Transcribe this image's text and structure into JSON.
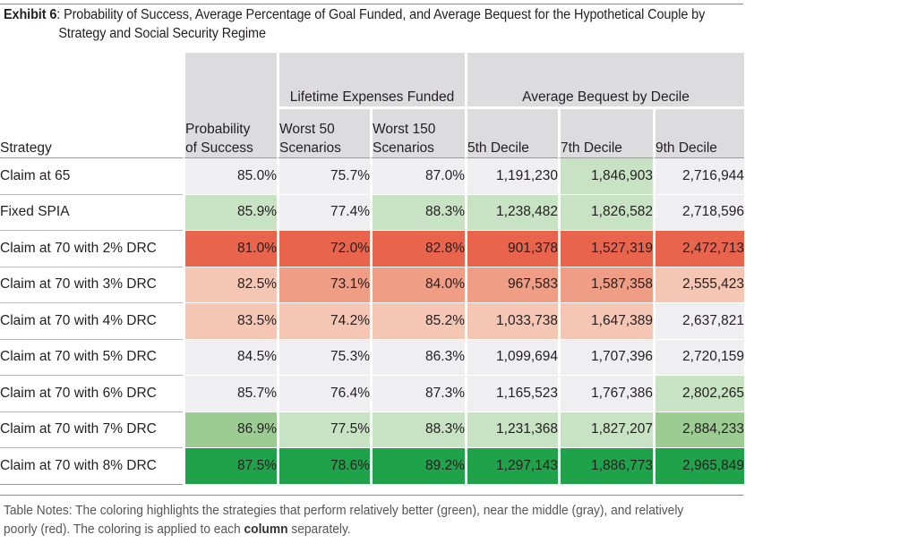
{
  "title": {
    "label": "Exhibit 6",
    "line1": ": Probability of Success, Average Percentage of Goal Funded, and Average Bequest for the Hypothetical Couple by",
    "line2": "Strategy and Social Security Regime"
  },
  "headers": {
    "strategy": "Strategy",
    "prob_line1": "Probability",
    "prob_line2": "of Success",
    "group_expenses": "Lifetime Expenses Funded",
    "group_bequest": "Average Bequest by Decile",
    "w50_line1": "Worst 50",
    "w50_line2": "Scenarios",
    "w150_line1": "Worst 150",
    "w150_line2": "Scenarios",
    "d5": "5th Decile",
    "d7": "7th Decile",
    "d9": "9th Decile"
  },
  "rows": [
    {
      "strategy": "Claim at 65",
      "prob": "85.0%",
      "w50": "75.7%",
      "w150": "87.0%",
      "d5": "1,191,230",
      "d7": "1,846,903",
      "d9": "2,716,944"
    },
    {
      "strategy": "Fixed SPIA",
      "prob": "85.9%",
      "w50": "77.4%",
      "w150": "88.3%",
      "d5": "1,238,482",
      "d7": "1,826,582",
      "d9": "2,718,596"
    },
    {
      "strategy": "Claim at 70 with 2% DRC",
      "prob": "81.0%",
      "w50": "72.0%",
      "w150": "82.8%",
      "d5": "901,378",
      "d7": "1,527,319",
      "d9": "2,472,713"
    },
    {
      "strategy": "Claim at 70 with 3% DRC",
      "prob": "82.5%",
      "w50": "73.1%",
      "w150": "84.0%",
      "d5": "967,583",
      "d7": "1,587,358",
      "d9": "2,555,423"
    },
    {
      "strategy": "Claim at 70 with 4% DRC",
      "prob": "83.5%",
      "w50": "74.2%",
      "w150": "85.2%",
      "d5": "1,033,738",
      "d7": "1,647,389",
      "d9": "2,637,821"
    },
    {
      "strategy": "Claim at 70 with 5% DRC",
      "prob": "84.5%",
      "w50": "75.3%",
      "w150": "86.3%",
      "d5": "1,099,694",
      "d7": "1,707,396",
      "d9": "2,720,159"
    },
    {
      "strategy": "Claim at 70 with 6% DRC",
      "prob": "85.7%",
      "w50": "76.4%",
      "w150": "87.3%",
      "d5": "1,165,523",
      "d7": "1,767,386",
      "d9": "2,802,265"
    },
    {
      "strategy": "Claim at 70 with 7% DRC",
      "prob": "86.9%",
      "w50": "77.5%",
      "w150": "88.3%",
      "d5": "1,231,368",
      "d7": "1,827,207",
      "d9": "2,884,233"
    },
    {
      "strategy": "Claim at 70 with 8% DRC",
      "prob": "87.5%",
      "w50": "78.6%",
      "w150": "89.2%",
      "d5": "1,297,143",
      "d7": "1,886,773",
      "d9": "2,965,849"
    }
  ],
  "cell_colors": [
    {
      "prob": "#efeff1",
      "w50": "#efeff1",
      "w150": "#efeff1",
      "d5": "#efeff1",
      "d7": "#c8e2c4",
      "d9": "#efeff1"
    },
    {
      "prob": "#c8e2c4",
      "w50": "#efeff1",
      "w150": "#c8e2c4",
      "d5": "#c8e2c4",
      "d7": "#c8e2c4",
      "d9": "#efeff1"
    },
    {
      "prob": "#e9644c",
      "w50": "#e9644c",
      "w150": "#e9644c",
      "d5": "#e9644c",
      "d7": "#e9644c",
      "d9": "#e9644c"
    },
    {
      "prob": "#f5c6b4",
      "w50": "#ef9d84",
      "w150": "#ef9d84",
      "d5": "#ef9d84",
      "d7": "#ef9d84",
      "d9": "#f5c6b4"
    },
    {
      "prob": "#f5c6b4",
      "w50": "#f5c6b4",
      "w150": "#f5c6b4",
      "d5": "#f5c6b4",
      "d7": "#f5c6b4",
      "d9": "#efeff1"
    },
    {
      "prob": "#efeff1",
      "w50": "#efeff1",
      "w150": "#efeff1",
      "d5": "#efeff1",
      "d7": "#efeff1",
      "d9": "#efeff1"
    },
    {
      "prob": "#efeff1",
      "w50": "#efeff1",
      "w150": "#efeff1",
      "d5": "#efeff1",
      "d7": "#efeff1",
      "d9": "#c8e2c4"
    },
    {
      "prob": "#9ccc93",
      "w50": "#c8e2c4",
      "w150": "#c8e2c4",
      "d5": "#c8e2c4",
      "d7": "#c8e2c4",
      "d9": "#9ccc93"
    },
    {
      "prob": "#1fa24a",
      "w50": "#1fa24a",
      "w150": "#1fa24a",
      "d5": "#1fa24a",
      "d7": "#1fa24a",
      "d9": "#1fa24a"
    }
  ],
  "note": {
    "part1": "Table Notes: The coloring highlights the strategies that perform relatively better (green), near the middle (gray), and relatively poorly (red). The coloring is applied to each ",
    "bold": "column",
    "part2": " separately."
  }
}
